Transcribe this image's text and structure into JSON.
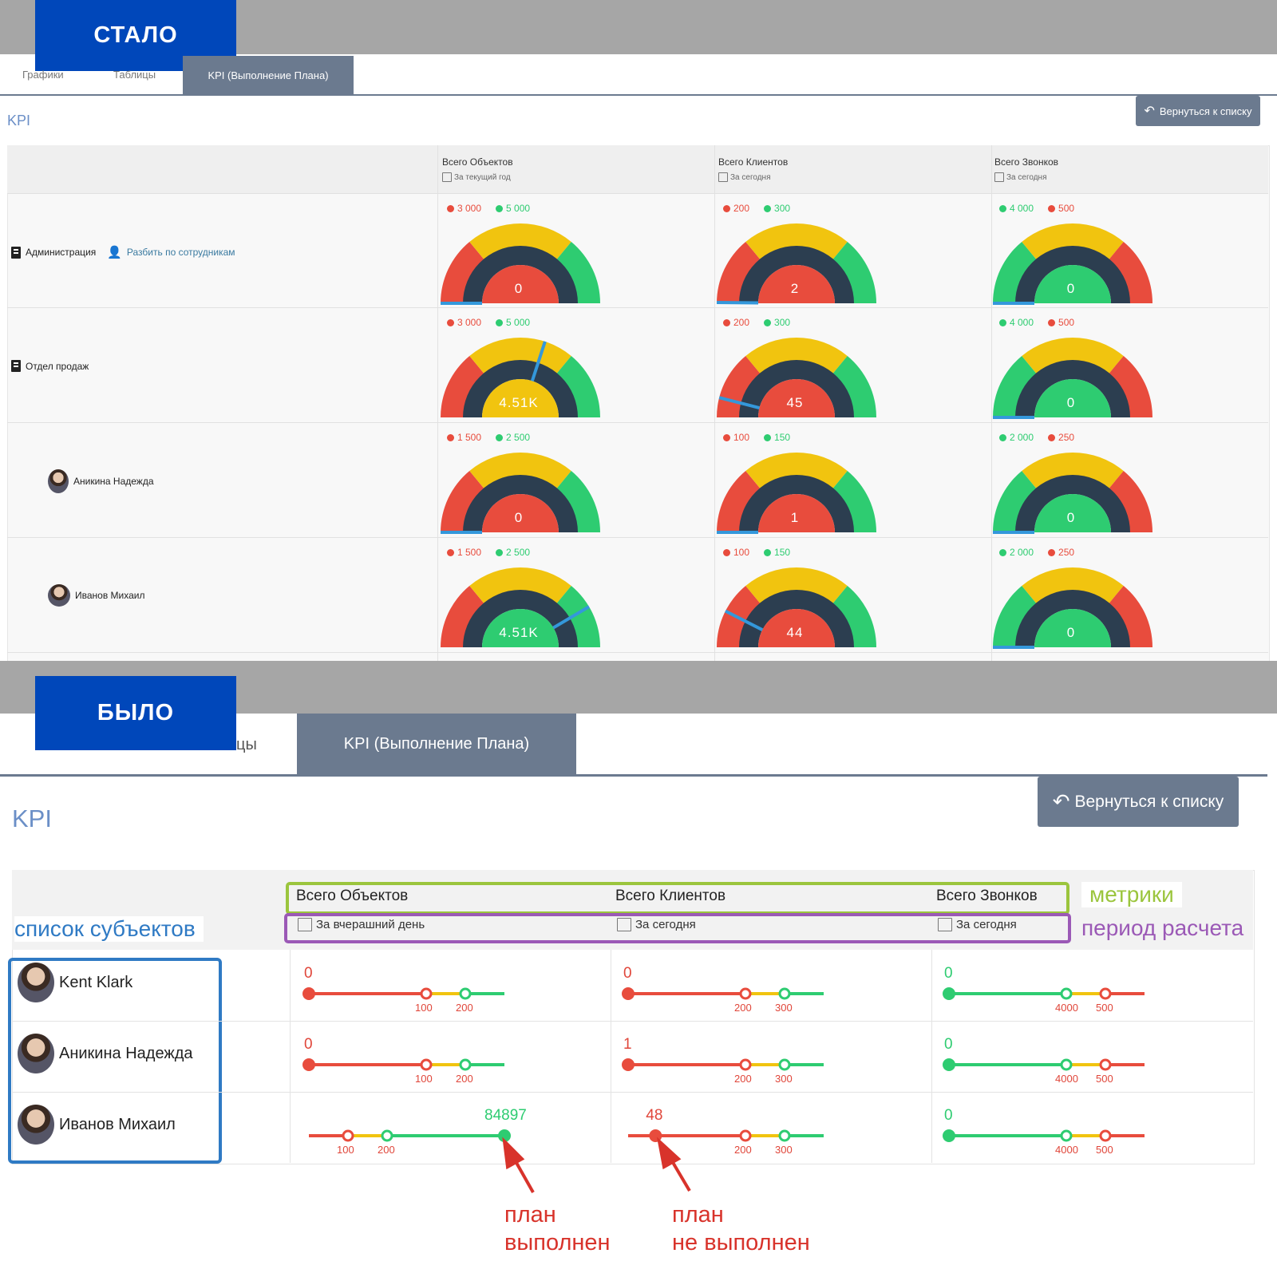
{
  "after": {
    "badge": "СТАЛО",
    "tabs": [
      "Графики",
      "Таблицы",
      "KPI (Выполнение Плана)"
    ],
    "back_button": "Вернуться к списку",
    "kpi_title": "KPI",
    "columns": [
      {
        "title": "Всего Объектов",
        "period": "За текущий год"
      },
      {
        "title": "Всего Клиентов",
        "period": "За сегодня"
      },
      {
        "title": "Всего Звонков",
        "period": "За сегодня"
      }
    ],
    "split_link": "Разбить по сотрудникам",
    "rows": [
      {
        "name": "Администрация",
        "type": "dept",
        "gauges": [
          {
            "a": "3 000",
            "a_color": "#e84c3d",
            "b": "5 000",
            "b_color": "#2ecc71",
            "value": "0",
            "fraction": 0.0,
            "center": "#e84c3d",
            "reverse": false
          },
          {
            "a": "200",
            "a_color": "#e84c3d",
            "b": "300",
            "b_color": "#2ecc71",
            "value": "2",
            "fraction": 0.003,
            "center": "#e84c3d",
            "reverse": false
          },
          {
            "a": "4 000",
            "a_color": "#2ecc71",
            "b": "500",
            "b_color": "#e84c3d",
            "value": "0",
            "fraction": 0.0,
            "center": "#2ecc71",
            "reverse": true
          }
        ]
      },
      {
        "name": "Отдел продаж",
        "type": "dept",
        "gauges": [
          {
            "a": "3 000",
            "a_color": "#e84c3d",
            "b": "5 000",
            "b_color": "#2ecc71",
            "value": "4.51K",
            "fraction": 0.6,
            "center": "#f1c40f",
            "reverse": false
          },
          {
            "a": "200",
            "a_color": "#e84c3d",
            "b": "300",
            "b_color": "#2ecc71",
            "value": "45",
            "fraction": 0.08,
            "center": "#e84c3d",
            "reverse": false
          },
          {
            "a": "4 000",
            "a_color": "#2ecc71",
            "b": "500",
            "b_color": "#e84c3d",
            "value": "0",
            "fraction": 0.0,
            "center": "#2ecc71",
            "reverse": true
          }
        ]
      },
      {
        "name": "Аникина Надежда",
        "type": "person",
        "gauges": [
          {
            "a": "1 500",
            "a_color": "#e84c3d",
            "b": "2 500",
            "b_color": "#2ecc71",
            "value": "0",
            "fraction": 0.0,
            "center": "#e84c3d",
            "reverse": false
          },
          {
            "a": "100",
            "a_color": "#e84c3d",
            "b": "150",
            "b_color": "#2ecc71",
            "value": "1",
            "fraction": 0.0,
            "center": "#e84c3d",
            "reverse": false
          },
          {
            "a": "2 000",
            "a_color": "#2ecc71",
            "b": "250",
            "b_color": "#e84c3d",
            "value": "0",
            "fraction": 0.0,
            "center": "#2ecc71",
            "reverse": true
          }
        ]
      },
      {
        "name": "Иванов Михаил",
        "type": "person",
        "gauges": [
          {
            "a": "1 500",
            "a_color": "#e84c3d",
            "b": "2 500",
            "b_color": "#2ecc71",
            "value": "4.51K",
            "fraction": 0.83,
            "center": "#2ecc71",
            "reverse": false
          },
          {
            "a": "100",
            "a_color": "#e84c3d",
            "b": "150",
            "b_color": "#2ecc71",
            "value": "44",
            "fraction": 0.15,
            "center": "#e84c3d",
            "reverse": false
          },
          {
            "a": "2 000",
            "a_color": "#2ecc71",
            "b": "250",
            "b_color": "#e84c3d",
            "value": "0",
            "fraction": 0.0,
            "center": "#2ecc71",
            "reverse": true
          }
        ]
      }
    ]
  },
  "before": {
    "badge": "БЫЛО",
    "tab_partial": "цы",
    "active_tab": "KPI (Выполнение Плана)",
    "back_button": "Вернуться к списку",
    "kpi_title": "KPI",
    "columns": [
      {
        "title": "Всего Объектов",
        "period": "За вчерашний день"
      },
      {
        "title": "Всего Клиентов",
        "period": "За сегодня"
      },
      {
        "title": "Всего Звонков",
        "period": "За сегодня"
      }
    ],
    "annotations": {
      "metrics": "метрики",
      "period": "период расчета",
      "subjects": "список субъектов",
      "plan_done": "план\nвыполнен",
      "plan_not_done": "план\nне выполнен"
    },
    "subjects": [
      "Kent Klark",
      "Аникина Надежда",
      "Иванов Михаил"
    ],
    "bars": [
      [
        {
          "value": "0",
          "value_color": "#e0463a",
          "t1": "100",
          "t2": "200",
          "pos": 0.0,
          "mode": "normal"
        },
        {
          "value": "0",
          "value_color": "#e0463a",
          "t1": "200",
          "t2": "300",
          "pos": 0.0,
          "mode": "normal"
        },
        {
          "value": "0",
          "value_color": "#2ecc71",
          "t1": "4000",
          "t2": "500",
          "pos": 0.0,
          "mode": "reverse"
        }
      ],
      [
        {
          "value": "0",
          "value_color": "#e0463a",
          "t1": "100",
          "t2": "200",
          "pos": 0.0,
          "mode": "normal"
        },
        {
          "value": "1",
          "value_color": "#e0463a",
          "t1": "200",
          "t2": "300",
          "pos": 0.0,
          "mode": "normal"
        },
        {
          "value": "0",
          "value_color": "#2ecc71",
          "t1": "4000",
          "t2": "500",
          "pos": 0.0,
          "mode": "reverse"
        }
      ],
      [
        {
          "value": "84897",
          "value_color": "#2ecc71",
          "t1": "100",
          "t2": "200",
          "pos": 1.0,
          "mode": "done"
        },
        {
          "value": "48",
          "value_color": "#e0463a",
          "t1": "200",
          "t2": "300",
          "pos": 0.14,
          "mode": "normal"
        },
        {
          "value": "0",
          "value_color": "#2ecc71",
          "t1": "4000",
          "t2": "500",
          "pos": 0.0,
          "mode": "reverse"
        }
      ]
    ]
  },
  "colors": {
    "red": "#e84c3d",
    "yellow": "#f1c40f",
    "green": "#2ecc71",
    "needle": "#3498db",
    "dark": "#2c3e50",
    "badge": "#0047ba",
    "tab": "#6b7a8f"
  }
}
